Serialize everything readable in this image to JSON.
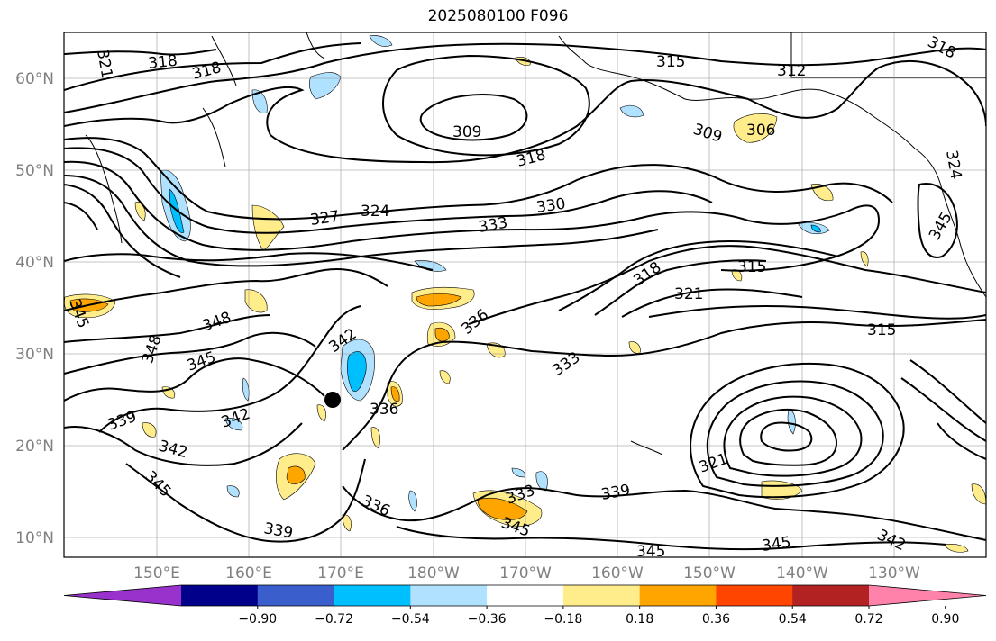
{
  "title": "2025080100 F096",
  "lat_labels": [
    "60°N",
    "50°N",
    "40°N",
    "30°N",
    "20°N",
    "10°N"
  ],
  "lon_labels": [
    "150°E",
    "160°E",
    "170°E",
    "180°W",
    "170°W",
    "160°W",
    "150°W",
    "140°W",
    "130°W"
  ],
  "contour_labels": [
    "321",
    "318",
    "318",
    "315",
    "312",
    "318",
    "309",
    "309",
    "306",
    "318",
    "324",
    "327",
    "324",
    "330",
    "333",
    "318",
    "315",
    "321",
    "315",
    "348",
    "342",
    "336",
    "345",
    "348",
    "342",
    "333",
    "345",
    "336",
    "339",
    "342",
    "345",
    "321",
    "336",
    "339",
    "333",
    "345",
    "339",
    "345",
    "345",
    "342",
    "345"
  ],
  "colorbar": {
    "ticks": [
      "−0.90",
      "−0.72",
      "−0.54",
      "−0.36",
      "−0.18",
      "0.18",
      "0.36",
      "0.54",
      "0.72",
      "0.90"
    ],
    "colors": [
      "#9932cc",
      "#00008b",
      "#3a5fcd",
      "#00bfff",
      "#b0e2ff",
      "#ffffff",
      "#ffec8b",
      "#ffa500",
      "#ff4500",
      "#b22222",
      "#ff82ab"
    ]
  }
}
